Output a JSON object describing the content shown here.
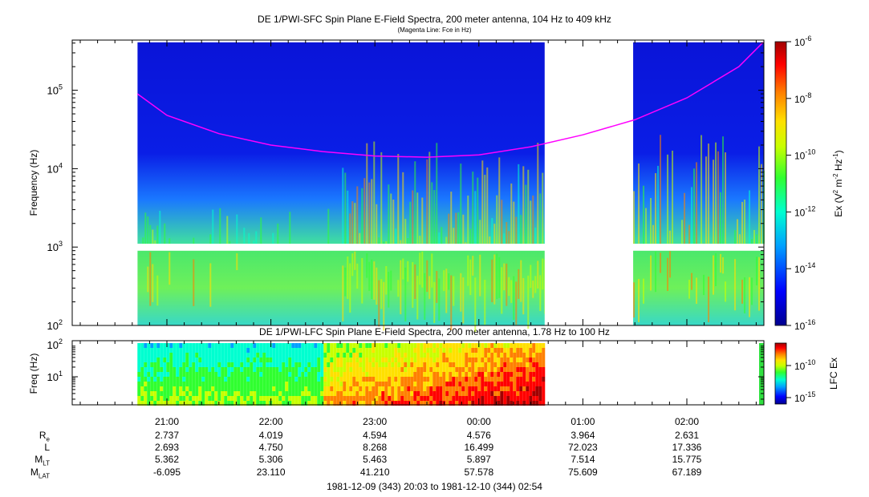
{
  "titles": {
    "main": "DE 1/PWI-SFC  Spin Plane E-Field Spectra, 200 meter antenna, 104 Hz to 409 kHz",
    "sub": "(Magenta Line: Fce in Hz)",
    "lfc": "DE 1/PWI-LFC  Spin Plane E-Field Spectra, 200 meter antenna, 1.78 Hz to 100 Hz"
  },
  "footer": "1981-12-09 (343) 20:03 to 1981-12-10 (344) 02:54",
  "chart_data": [
    {
      "type": "heatmap",
      "title": "DE 1/PWI-SFC  Spin Plane E-Field Spectra, 200 meter antenna, 104 Hz to 409 kHz",
      "subtitle": "(Magenta Line: Fce in Hz)",
      "xlabel": "",
      "ylabel": "Frequency (Hz)",
      "y_scale": "log",
      "ylim": [
        100,
        409000
      ],
      "y_ticks": [
        "10^2",
        "10^3",
        "10^4",
        "10^5"
      ],
      "x_ticks": [
        "21:00",
        "22:00",
        "23:00",
        "00:00",
        "01:00",
        "02:00"
      ],
      "xlim": [
        "20:03",
        "02:54"
      ],
      "colorbar": {
        "label": "Ex (V^2 m^-2 Hz^-1)",
        "scale": "log",
        "range": [
          1e-16,
          1e-06
        ],
        "ticks": [
          "10^-6",
          "10^-8",
          "10^-10",
          "10^-12",
          "10^-14",
          "10^-16"
        ]
      },
      "data_gaps": [
        [
          "20:03",
          "20:43"
        ],
        [
          "00:38",
          "01:29"
        ]
      ],
      "bands": [
        {
          "name": "lower",
          "freq_range": [
            100,
            900
          ]
        },
        {
          "name": "upper",
          "freq_range": [
            1100,
            409000
          ]
        }
      ],
      "fce_line": {
        "color": "#ff00ff",
        "x": [
          "20:43",
          "21:00",
          "21:30",
          "22:00",
          "22:30",
          "23:00",
          "23:30",
          "00:00",
          "00:30",
          "01:00",
          "01:30",
          "02:00",
          "02:30",
          "02:44"
        ],
        "y": [
          90000,
          48000,
          28000,
          20000,
          16500,
          14500,
          14000,
          15000,
          19000,
          27000,
          42000,
          80000,
          200000,
          409000
        ]
      }
    },
    {
      "type": "heatmap",
      "title": "DE 1/PWI-LFC  Spin Plane E-Field Spectra, 200 meter antenna, 1.78 Hz to 100 Hz",
      "ylabel": "Freq (Hz)",
      "y_scale": "log",
      "ylim": [
        1.78,
        100
      ],
      "y_ticks": [
        "10^1",
        "10^2"
      ],
      "x_ticks": [
        "21:00",
        "22:00",
        "23:00",
        "00:00",
        "01:00",
        "02:00"
      ],
      "colorbar": {
        "label": "LFC Ex",
        "scale": "log",
        "ticks": [
          "10^-10",
          "10^-15"
        ]
      },
      "data_gaps": [
        [
          "00:38",
          "02:50"
        ]
      ]
    }
  ],
  "orbit": {
    "times": [
      "21:00",
      "22:00",
      "23:00",
      "00:00",
      "01:00",
      "02:00"
    ],
    "rows": [
      {
        "label": "R",
        "sub": "e",
        "values": [
          "2.737",
          "4.019",
          "4.594",
          "4.576",
          "3.964",
          "2.631"
        ]
      },
      {
        "label": "L",
        "sub": "",
        "values": [
          "2.693",
          "4.750",
          "8.268",
          "16.499",
          "72.023",
          "17.336"
        ]
      },
      {
        "label": "M",
        "sub": "LT",
        "values": [
          "5.362",
          "5.306",
          "5.463",
          "5.897",
          "7.514",
          "15.775"
        ]
      },
      {
        "label": "M",
        "sub": "LAT",
        "values": [
          "-6.095",
          "23.110",
          "41.210",
          "57.578",
          "75.609",
          "67.189"
        ]
      }
    ]
  },
  "colors": {
    "background": "#ffffff",
    "fce_line": "#ff00ff",
    "colormap": [
      "#00008f",
      "#0000ff",
      "#00a0ff",
      "#00ffd0",
      "#30ff30",
      "#c8ff00",
      "#ffe000",
      "#ff8000",
      "#ff0000",
      "#a00000"
    ]
  }
}
